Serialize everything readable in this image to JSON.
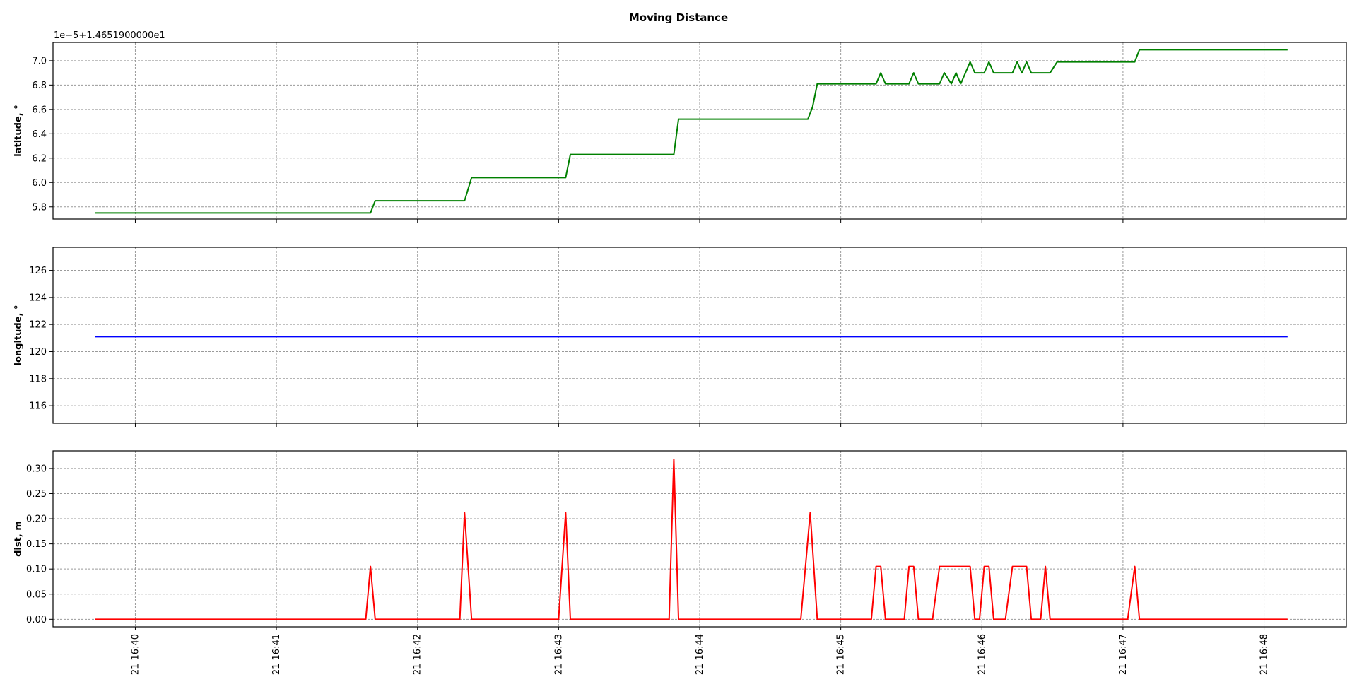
{
  "title": "Moving Distance",
  "chart_data": [
    {
      "type": "line",
      "name": "latitude",
      "ylabel": "latitude, °",
      "offset_label": "1e−5+1.4651900000e1",
      "color": "#008000",
      "ylim": [
        5.7,
        7.15
      ],
      "yticks": [
        5.8,
        6.0,
        6.2,
        6.4,
        6.6,
        6.8,
        7.0
      ],
      "ytick_labels": [
        "5.8",
        "6.0",
        "6.2",
        "6.4",
        "6.6",
        "6.8",
        "7.0"
      ],
      "grid": true,
      "points": [
        [
          "16:39:43",
          5.75
        ],
        [
          "16:41:40",
          5.75
        ],
        [
          "16:41:42",
          5.85
        ],
        [
          "16:42:20",
          5.85
        ],
        [
          "16:42:23",
          6.04
        ],
        [
          "16:43:03",
          6.04
        ],
        [
          "16:43:05",
          6.23
        ],
        [
          "16:43:49",
          6.23
        ],
        [
          "16:43:51",
          6.52
        ],
        [
          "16:44:46",
          6.52
        ],
        [
          "16:44:48",
          6.62
        ],
        [
          "16:44:50",
          6.81
        ],
        [
          "16:45:15",
          6.81
        ],
        [
          "16:45:17",
          6.9
        ],
        [
          "16:45:19",
          6.81
        ],
        [
          "16:45:29",
          6.81
        ],
        [
          "16:45:31",
          6.9
        ],
        [
          "16:45:33",
          6.81
        ],
        [
          "16:45:42",
          6.81
        ],
        [
          "16:45:44",
          6.9
        ],
        [
          "16:45:47",
          6.81
        ],
        [
          "16:45:49",
          6.9
        ],
        [
          "16:45:51",
          6.81
        ],
        [
          "16:45:55",
          6.99
        ],
        [
          "16:45:57",
          6.9
        ],
        [
          "16:46:01",
          6.9
        ],
        [
          "16:46:03",
          6.99
        ],
        [
          "16:46:05",
          6.9
        ],
        [
          "16:46:13",
          6.9
        ],
        [
          "16:46:15",
          6.99
        ],
        [
          "16:46:17",
          6.9
        ],
        [
          "16:46:19",
          6.99
        ],
        [
          "16:46:21",
          6.9
        ],
        [
          "16:46:29",
          6.9
        ],
        [
          "16:46:32",
          6.99
        ],
        [
          "16:47:05",
          6.99
        ],
        [
          "16:47:07",
          7.09
        ],
        [
          "16:48:10",
          7.09
        ]
      ]
    },
    {
      "type": "line",
      "name": "longitude",
      "ylabel": "longitude, °",
      "color": "#0000ff",
      "ylim": [
        114.7,
        127.7
      ],
      "yticks": [
        116,
        118,
        120,
        122,
        124,
        126
      ],
      "ytick_labels": [
        "116",
        "118",
        "120",
        "122",
        "124",
        "126"
      ],
      "grid": true,
      "points": [
        [
          "16:39:43",
          121.1
        ],
        [
          "16:48:10",
          121.1
        ]
      ]
    },
    {
      "type": "line",
      "name": "dist",
      "ylabel": "dist, m",
      "color": "#ff0000",
      "ylim": [
        -0.015,
        0.335
      ],
      "yticks": [
        0.0,
        0.05,
        0.1,
        0.15,
        0.2,
        0.25,
        0.3
      ],
      "ytick_labels": [
        "0.00",
        "0.05",
        "0.10",
        "0.15",
        "0.20",
        "0.25",
        "0.30"
      ],
      "grid": true,
      "points": [
        [
          "16:39:43",
          0.0
        ],
        [
          "16:41:38",
          0.0
        ],
        [
          "16:41:40",
          0.105
        ],
        [
          "16:41:42",
          0.0
        ],
        [
          "16:42:18",
          0.0
        ],
        [
          "16:42:20",
          0.212
        ],
        [
          "16:42:23",
          0.0
        ],
        [
          "16:43:00",
          0.0
        ],
        [
          "16:43:03",
          0.212
        ],
        [
          "16:43:05",
          0.0
        ],
        [
          "16:43:47",
          0.0
        ],
        [
          "16:43:49",
          0.318
        ],
        [
          "16:43:51",
          0.0
        ],
        [
          "16:44:43",
          0.0
        ],
        [
          "16:44:47",
          0.212
        ],
        [
          "16:44:50",
          0.0
        ],
        [
          "16:45:13",
          0.0
        ],
        [
          "16:45:15",
          0.105
        ],
        [
          "16:45:17",
          0.105
        ],
        [
          "16:45:19",
          0.0
        ],
        [
          "16:45:27",
          0.0
        ],
        [
          "16:45:29",
          0.105
        ],
        [
          "16:45:31",
          0.105
        ],
        [
          "16:45:33",
          0.0
        ],
        [
          "16:45:39",
          0.0
        ],
        [
          "16:45:42",
          0.105
        ],
        [
          "16:45:55",
          0.105
        ],
        [
          "16:45:57",
          0.0
        ],
        [
          "16:45:59",
          0.0
        ],
        [
          "16:46:01",
          0.105
        ],
        [
          "16:46:03",
          0.105
        ],
        [
          "16:46:05",
          0.0
        ],
        [
          "16:46:10",
          0.0
        ],
        [
          "16:46:13",
          0.105
        ],
        [
          "16:46:19",
          0.105
        ],
        [
          "16:46:21",
          0.0
        ],
        [
          "16:46:25",
          0.0
        ],
        [
          "16:46:27",
          0.105
        ],
        [
          "16:46:29",
          0.0
        ],
        [
          "16:47:02",
          0.0
        ],
        [
          "16:47:05",
          0.105
        ],
        [
          "16:47:07",
          0.0
        ],
        [
          "16:48:10",
          0.0
        ]
      ]
    }
  ],
  "x_axis": {
    "type": "time",
    "xlim": [
      "16:39:25",
      "16:48:35"
    ],
    "ticks": [
      "16:40:00",
      "16:41:00",
      "16:42:00",
      "16:43:00",
      "16:44:00",
      "16:45:00",
      "16:46:00",
      "16:47:00",
      "16:48:00"
    ],
    "tick_labels": [
      "21 16:40",
      "21 16:41",
      "21 16:42",
      "21 16:43",
      "21 16:44",
      "21 16:45",
      "21 16:46",
      "21 16:47",
      "21 16:48"
    ]
  }
}
